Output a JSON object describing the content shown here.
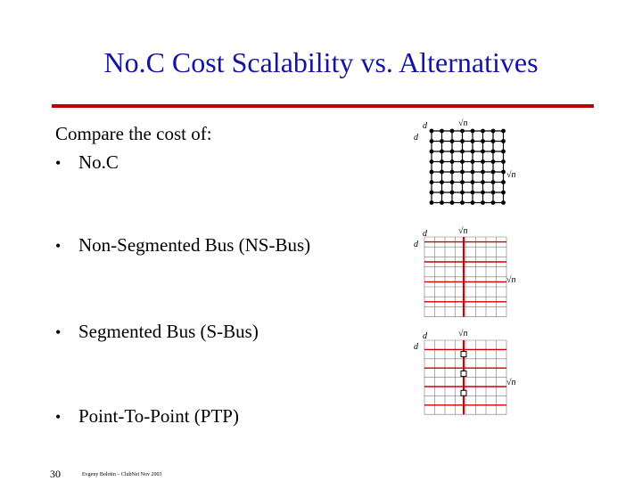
{
  "title": "No.C Cost Scalability vs. Alternatives",
  "intro": "Compare the cost of:",
  "bullet_char": "•",
  "bullets": [
    "No.C",
    "Non-Segmented Bus (NS-Bus)",
    "Segmented Bus (S-Bus)",
    "Point-To-Point (PTP)"
  ],
  "diagram_labels": {
    "d": "d",
    "sqrt_n": "√n"
  },
  "footer": {
    "page_number": "30",
    "credit": "Evgeny Bolotin – ClubNet Nov 2003"
  },
  "colors": {
    "title": "#1414a0",
    "rule": "#c00000",
    "bus": "#cc0000"
  }
}
